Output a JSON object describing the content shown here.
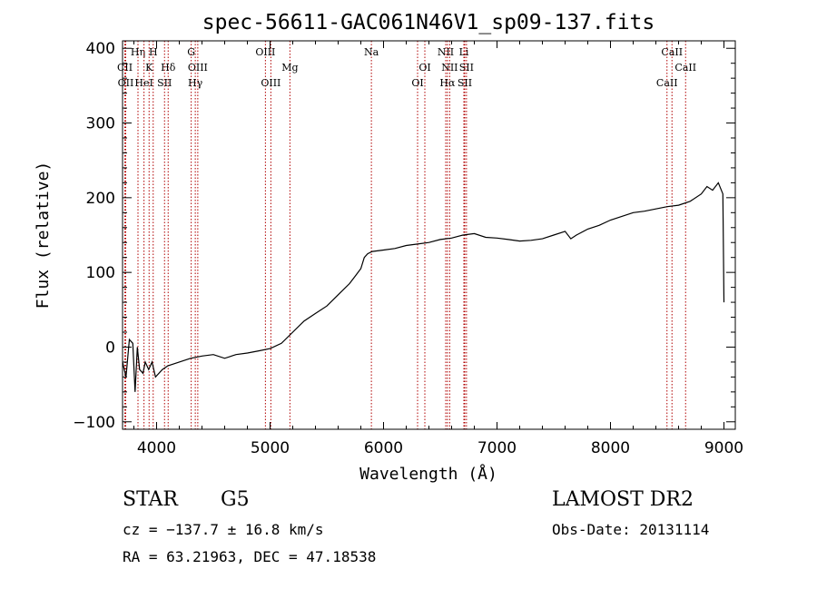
{
  "colors": {
    "spectrum": "#000000",
    "line_marker": "#b00000",
    "axes": "#000000"
  },
  "chart_data": {
    "type": "line",
    "title": "spec-56611-GAC061N46V1_sp09-137.fits",
    "xlabel": "Wavelength (Å)",
    "ylabel": "Flux (relative)",
    "xlim": [
      3700,
      9100
    ],
    "ylim": [
      -110,
      410
    ],
    "x_ticks": [
      4000,
      5000,
      6000,
      7000,
      8000,
      9000
    ],
    "y_ticks": [
      -100,
      0,
      100,
      200,
      300,
      400
    ],
    "x_tick_labels": [
      "4000",
      "5000",
      "6000",
      "7000",
      "8000",
      "9000"
    ],
    "y_tick_labels": [
      "−100",
      "0",
      "100",
      "200",
      "300",
      "400"
    ],
    "grid": false,
    "series": [
      {
        "x": [
          3700,
          3730,
          3760,
          3790,
          3810,
          3830,
          3850,
          3880,
          3900,
          3930,
          3960,
          3990,
          4050,
          4100,
          4200,
          4300,
          4400,
          4500,
          4600,
          4700,
          4800,
          4900,
          5000,
          5100,
          5200,
          5300,
          5400,
          5500,
          5600,
          5700,
          5750,
          5800,
          5830,
          5860,
          5900,
          6000,
          6100,
          6200,
          6300,
          6400,
          6500,
          6600,
          6700,
          6800,
          6900,
          7000,
          7100,
          7200,
          7300,
          7400,
          7500,
          7600,
          7650,
          7700,
          7800,
          7900,
          8000,
          8100,
          8200,
          8300,
          8400,
          8500,
          8600,
          8700,
          8800,
          8850,
          8900,
          8950,
          8990,
          9000
        ],
        "y": [
          -20,
          -40,
          10,
          5,
          -60,
          0,
          -30,
          -35,
          -20,
          -30,
          -20,
          -40,
          -30,
          -25,
          -20,
          -15,
          -12,
          -10,
          -15,
          -10,
          -8,
          -5,
          -2,
          5,
          20,
          35,
          45,
          55,
          70,
          85,
          95,
          105,
          120,
          125,
          128,
          130,
          132,
          136,
          138,
          140,
          144,
          146,
          150,
          152,
          147,
          146,
          144,
          142,
          143,
          145,
          150,
          155,
          145,
          150,
          158,
          163,
          170,
          175,
          180,
          182,
          185,
          188,
          190,
          195,
          205,
          215,
          210,
          220,
          205,
          60
        ]
      }
    ],
    "line_markers": [
      {
        "label": "Hη",
        "x": 3836,
        "row": 0
      },
      {
        "label": "H",
        "x": 3970,
        "row": 0
      },
      {
        "label": "CII",
        "x": 3720,
        "row": 1
      },
      {
        "label": "K",
        "x": 3934,
        "row": 1
      },
      {
        "label": "Hδ",
        "x": 4102,
        "row": 1
      },
      {
        "label": "OII",
        "x": 3728,
        "row": 2
      },
      {
        "label": "HeI",
        "x": 3889,
        "row": 2
      },
      {
        "label": "SII",
        "x": 4070,
        "row": 2
      },
      {
        "label": "G",
        "x": 4305,
        "row": 0
      },
      {
        "label": "OIII",
        "x": 4363,
        "row": 1
      },
      {
        "label": "Hγ",
        "x": 4341,
        "row": 2
      },
      {
        "label": "OIII",
        "x": 4959,
        "row": 0
      },
      {
        "label": "Mg",
        "x": 5175,
        "row": 1
      },
      {
        "label": "OIII",
        "x": 5007,
        "row": 2
      },
      {
        "label": "Na",
        "x": 5893,
        "row": 0
      },
      {
        "label": "OI",
        "x": 6364,
        "row": 1
      },
      {
        "label": "OI",
        "x": 6300,
        "row": 2
      },
      {
        "label": "NII",
        "x": 6548,
        "row": 0
      },
      {
        "label": "Li",
        "x": 6708,
        "row": 0
      },
      {
        "label": "NII",
        "x": 6583,
        "row": 1
      },
      {
        "label": "SII",
        "x": 6731,
        "row": 1
      },
      {
        "label": "Hα",
        "x": 6563,
        "row": 2
      },
      {
        "label": "SII",
        "x": 6716,
        "row": 2
      },
      {
        "label": "CaII",
        "x": 8542,
        "row": 0
      },
      {
        "label": "CaII",
        "x": 8662,
        "row": 1
      },
      {
        "label": "CaII",
        "x": 8498,
        "row": 2
      }
    ]
  },
  "info": {
    "object_class": "STAR",
    "subclass": "G5",
    "survey": "LAMOST DR2",
    "redshift_line": "cz = −137.7 ± 16.8 km/s",
    "obs_date": "Obs-Date: 20131114",
    "coords": "RA =  63.21963, DEC =  47.18538"
  }
}
